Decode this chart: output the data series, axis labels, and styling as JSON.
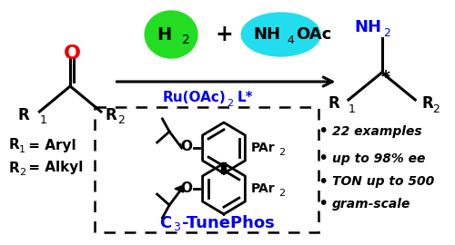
{
  "bg_color": "#ffffff",
  "h2_bubble_color": "#22dd22",
  "nh4oac_bubble_color": "#22ddee",
  "ru_text_color": "#0000ee",
  "product_amine_color": "#0000ee",
  "ketone_o_color": "#ee0000",
  "c3tunephos_text_color": "#0000ee",
  "bullet_items": [
    "22 examples",
    "up to 98% ee",
    "TON up to 500",
    "gram-scale"
  ]
}
